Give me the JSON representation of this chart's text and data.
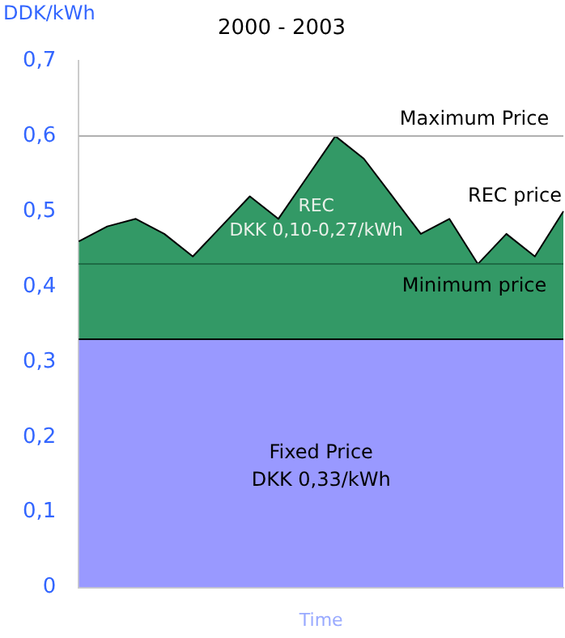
{
  "chart_data": {
    "type": "area",
    "title": "2000 - 2003",
    "xlabel": "Time",
    "ylabel": "DDK/kWh",
    "categories": [
      null,
      null,
      null,
      null,
      null,
      null,
      null,
      null,
      null,
      null,
      null,
      null,
      null,
      null,
      null,
      null,
      null,
      null
    ],
    "series": [
      {
        "color": "#9999ff",
        "values": [
          0.33,
          0.33,
          0.33,
          0.33,
          0.33,
          0.33,
          0.33,
          0.33,
          0.33,
          0.33,
          0.33,
          0.33,
          0.33,
          0.33,
          0.33,
          0.33,
          0.33,
          0.33
        ]
      },
      {
        "color": "#339966",
        "values": [
          0.46,
          0.48,
          0.49,
          0.47,
          0.44,
          0.48,
          0.52,
          0.49,
          0.545,
          0.6,
          0.57,
          0.52,
          0.47,
          0.49,
          0.43,
          0.47,
          0.44,
          0.5
        ]
      }
    ],
    "ylim": [
      0,
      0.7
    ],
    "yticks": [
      0,
      {
        "value": 0.1,
        "label": "0,1"
      },
      {
        "value": 0.2,
        "label": "0,2"
      },
      {
        "value": 0.3,
        "label": "0,3"
      },
      {
        "value": 0.4,
        "label": "0,4"
      },
      {
        "value": 0.5,
        "label": "0,5"
      },
      {
        "value": 0.6,
        "label": "0,6"
      },
      {
        "value": 0.7,
        "label": "0,7"
      }
    ],
    "ref_lines": [
      {
        "axis": "y",
        "value": 0.6,
        "label": "Maximum Price",
        "color": "#b0b0b0"
      },
      {
        "axis": "y",
        "value": 0.43,
        "label": "Minimum price",
        "color": "#1e6b45"
      }
    ],
    "annotations": [
      "Fixed Price\nDKK 0,33/kWh",
      "REC\nDKK 0,10-0,27/kWh",
      "REC price"
    ],
    "grid": false,
    "legend": false
  }
}
